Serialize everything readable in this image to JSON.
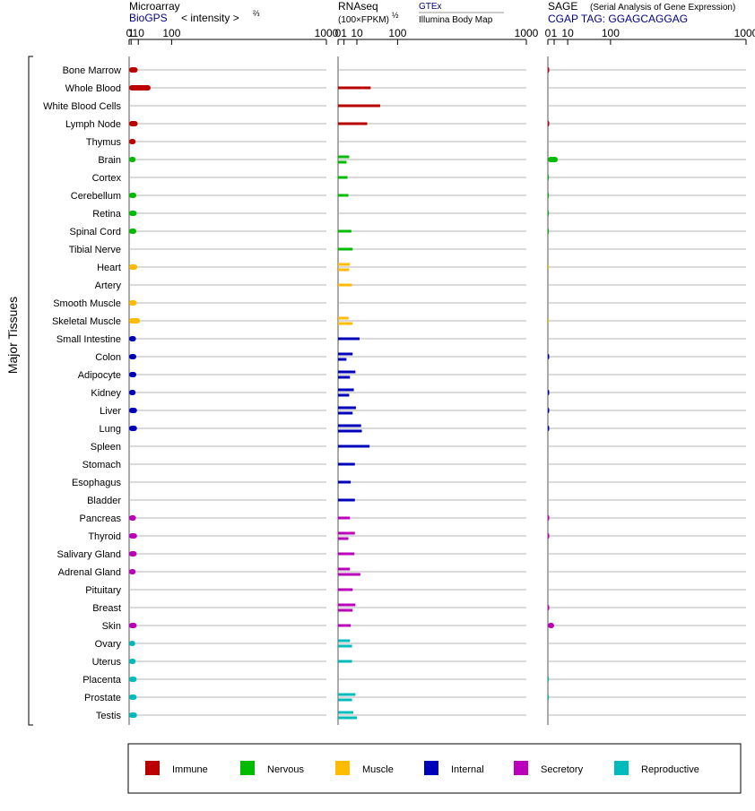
{
  "panels": {
    "microarray": {
      "title": "Microarray",
      "source": "BioGPS",
      "scale_label": "< intensity >",
      "scale_power": "⅔"
    },
    "rnaseq": {
      "title": "RNAseq",
      "scale_label": "(100×FPKM)",
      "scale_power": "½",
      "source_1": "GTEx",
      "source_2": "Illumina Body Map"
    },
    "sage": {
      "title": "SAGE",
      "subtitle": "(Serial Analysis of Gene Expression)",
      "tag_label": "CGAP TAG: GGAGCAGGAG"
    }
  },
  "y_axis_label": "Major Tissues",
  "legend": [
    {
      "label": "Immune",
      "color": "#bb0000"
    },
    {
      "label": "Nervous",
      "color": "#00bb00"
    },
    {
      "label": "Muscle",
      "color": "#ffbb00"
    },
    {
      "label": "Internal",
      "color": "#0000bb"
    },
    {
      "label": "Secretory",
      "color": "#bb00bb"
    },
    {
      "label": "Reproductive",
      "color": "#00bbbb"
    }
  ],
  "chart_data": {
    "type": "bar",
    "orientation": "horizontal",
    "x_scale": "power",
    "x_ticks": [
      0,
      1,
      10,
      100,
      1000
    ],
    "xlim": [
      0,
      1000
    ],
    "categories": [
      "Bone Marrow",
      "Whole Blood",
      "White Blood Cells",
      "Lymph Node",
      "Thymus",
      "Brain",
      "Cortex",
      "Cerebellum",
      "Retina",
      "Spinal Cord",
      "Tibial Nerve",
      "Heart",
      "Artery",
      "Smooth Muscle",
      "Skeletal Muscle",
      "Small Intestine",
      "Colon",
      "Adipocyte",
      "Kidney",
      "Liver",
      "Lung",
      "Spleen",
      "Stomach",
      "Esophagus",
      "Bladder",
      "Pancreas",
      "Thyroid",
      "Salivary Gland",
      "Adrenal Gland",
      "Pituitary",
      "Breast",
      "Skin",
      "Ovary",
      "Uterus",
      "Placenta",
      "Prostate",
      "Testis"
    ],
    "groups": [
      "Immune",
      "Immune",
      "Immune",
      "Immune",
      "Immune",
      "Nervous",
      "Nervous",
      "Nervous",
      "Nervous",
      "Nervous",
      "Nervous",
      "Muscle",
      "Muscle",
      "Muscle",
      "Muscle",
      "Internal",
      "Internal",
      "Internal",
      "Internal",
      "Internal",
      "Internal",
      "Internal",
      "Internal",
      "Internal",
      "Internal",
      "Secretory",
      "Secretory",
      "Secretory",
      "Secretory",
      "Secretory",
      "Secretory",
      "Secretory",
      "Reproductive",
      "Reproductive",
      "Reproductive",
      "Reproductive",
      "Reproductive"
    ],
    "series": [
      {
        "name": "Microarray (BioGPS)",
        "values": [
          9,
          36,
          null,
          9,
          6,
          6,
          null,
          7,
          7.5,
          7,
          null,
          8.5,
          null,
          7.5,
          13,
          6.5,
          7,
          7,
          6,
          8,
          8,
          null,
          null,
          null,
          null,
          6.5,
          8,
          7.5,
          6,
          null,
          null,
          7.5,
          5.5,
          6,
          7.5,
          7.5,
          8
        ]
      },
      {
        "name": "RNAseq (GTEx)",
        "values": [
          null,
          30,
          50,
          24,
          null,
          3.5,
          2.5,
          3,
          null,
          5,
          6,
          4,
          5.5,
          null,
          3.1,
          13,
          6,
          8.5,
          7,
          9,
          15,
          28,
          8,
          4.5,
          8,
          4,
          8,
          7.5,
          4,
          6,
          8.5,
          4.5,
          4,
          5.5,
          null,
          8.5,
          6.5
        ]
      },
      {
        "name": "RNAseq (Illumina Body Map)",
        "values": [
          null,
          null,
          null,
          null,
          null,
          2,
          null,
          null,
          null,
          null,
          null,
          3.5,
          null,
          null,
          6,
          null,
          2,
          4,
          3.5,
          6,
          16,
          null,
          null,
          null,
          null,
          null,
          3,
          null,
          14,
          null,
          6,
          null,
          5.5,
          null,
          null,
          5.5,
          10
        ]
      },
      {
        "name": "SAGE (CGAP)",
        "values": [
          0.05,
          null,
          null,
          0.05,
          null,
          2.5,
          0.02,
          0.02,
          0.02,
          0.02,
          null,
          0.02,
          null,
          null,
          0.02,
          null,
          0.05,
          null,
          0.05,
          0.05,
          0.05,
          null,
          null,
          null,
          null,
          0.05,
          0.05,
          null,
          null,
          null,
          0.05,
          1,
          null,
          null,
          0.02,
          0.02,
          null
        ]
      }
    ]
  }
}
